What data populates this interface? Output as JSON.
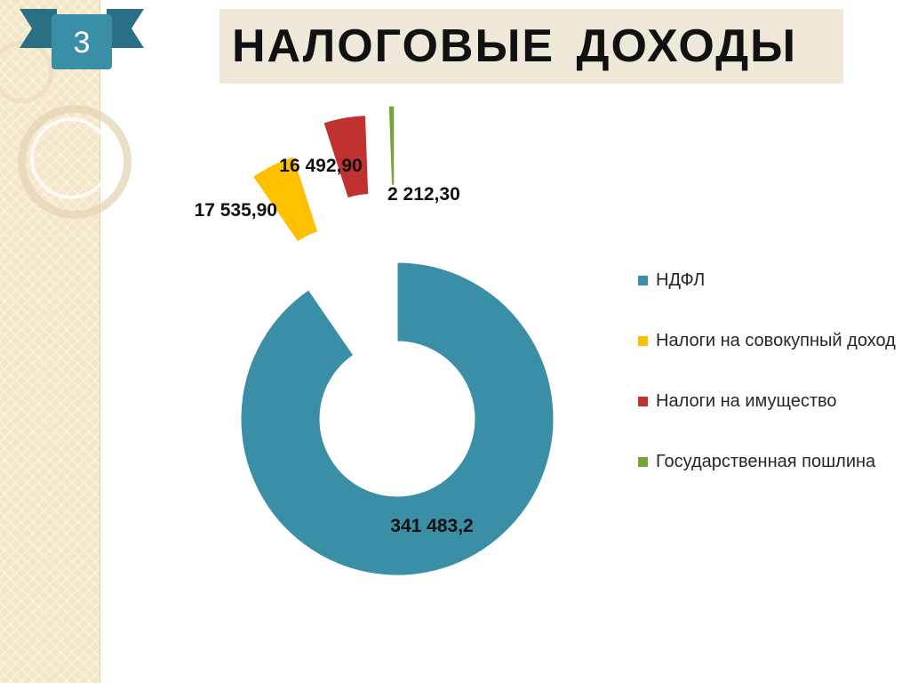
{
  "slide": {
    "number": "3",
    "title": "НАЛОГОВЫЕ  ДОХОДЫ"
  },
  "theme": {
    "ribbon_color": "#3a8ea5",
    "ribbon_dark": "#2a6f83"
  },
  "chart_data": {
    "type": "pie",
    "variant": "doughnut",
    "exploded": true,
    "categories": [
      "НДФЛ",
      "Налоги на совокупный доход",
      "Налоги на имущество",
      "Государственная пошлина"
    ],
    "values": [
      341483.2,
      17535.9,
      16492.9,
      2212.3
    ],
    "data_labels": [
      "341 483,2",
      "17 535,90",
      "16 492,90",
      "2 212,30"
    ],
    "colors": [
      "#3a8ea5",
      "#ffc000",
      "#c0322f",
      "#77a33a"
    ],
    "legend_position": "right",
    "title": ""
  },
  "legend": {
    "items": [
      {
        "label": "НДФЛ",
        "color": "#3a8ea5"
      },
      {
        "label": "Налоги на совокупный доход",
        "color": "#ffc000"
      },
      {
        "label": "Налоги на имущество",
        "color": "#c0322f"
      },
      {
        "label": "Государственная пошлина",
        "color": "#77a33a"
      }
    ]
  }
}
